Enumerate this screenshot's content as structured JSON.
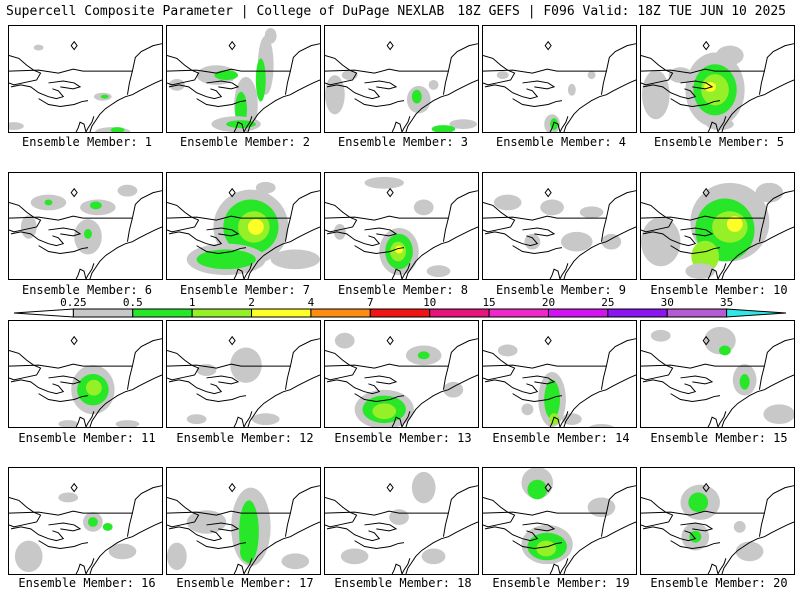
{
  "header": {
    "title_left": "Supercell Composite Parameter | College of DuPage NEXLAB",
    "title_right": "18Z GEFS | F096 Valid: 18Z TUE JUN 10 2025"
  },
  "colors": {
    "bins": [
      "#c8c8c8",
      "#28e628",
      "#96f028",
      "#ffff28",
      "#ff8c14",
      "#f01414",
      "#e6147d",
      "#f028c8",
      "#d214f0",
      "#8c14f0",
      "#b45ad2",
      "#32e6e6"
    ]
  },
  "legend": {
    "ticks": [
      "0.25",
      "0.5",
      "1",
      "2",
      "4",
      "7",
      "10",
      "15",
      "20",
      "25",
      "30",
      "35"
    ]
  },
  "members": [
    {
      "label": "Ensemble Member: 1",
      "icon": "map-panel",
      "blobs": [
        [
          30,
          22,
          5,
          3,
          0
        ],
        [
          95,
          72,
          9,
          4,
          0
        ],
        [
          97,
          72,
          4,
          2,
          1
        ],
        [
          105,
          108,
          18,
          5,
          0
        ],
        [
          110,
          106,
          7,
          3,
          1
        ],
        [
          5,
          102,
          10,
          4,
          0
        ]
      ]
    },
    {
      "label": "Ensemble Member: 2",
      "icon": "map-panel",
      "blobs": [
        [
          100,
          40,
          8,
          30,
          0
        ],
        [
          95,
          55,
          5,
          22,
          1
        ],
        [
          50,
          50,
          20,
          10,
          0
        ],
        [
          60,
          50,
          12,
          5,
          1
        ],
        [
          80,
          80,
          12,
          28,
          0
        ],
        [
          75,
          85,
          6,
          18,
          1
        ],
        [
          70,
          100,
          25,
          8,
          0
        ],
        [
          75,
          100,
          15,
          4,
          1
        ],
        [
          105,
          10,
          6,
          8,
          0
        ],
        [
          10,
          60,
          8,
          6,
          0
        ]
      ]
    },
    {
      "label": "Ensemble Member: 3",
      "icon": "map-panel",
      "blobs": [
        [
          95,
          75,
          12,
          14,
          0
        ],
        [
          93,
          72,
          5,
          7,
          1
        ],
        [
          10,
          70,
          10,
          20,
          0
        ],
        [
          25,
          50,
          8,
          5,
          0
        ],
        [
          110,
          60,
          5,
          5,
          0
        ],
        [
          140,
          100,
          14,
          5,
          0
        ],
        [
          120,
          105,
          12,
          4,
          1
        ]
      ]
    },
    {
      "label": "Ensemble Member: 4",
      "icon": "map-panel",
      "blobs": [
        [
          70,
          100,
          8,
          10,
          0
        ],
        [
          72,
          100,
          4,
          6,
          1
        ],
        [
          90,
          65,
          4,
          6,
          0
        ],
        [
          110,
          50,
          4,
          4,
          0
        ],
        [
          20,
          50,
          6,
          4,
          0
        ]
      ]
    },
    {
      "label": "Ensemble Member: 5",
      "icon": "map-panel",
      "blobs": [
        [
          75,
          65,
          30,
          38,
          0
        ],
        [
          75,
          65,
          22,
          26,
          1
        ],
        [
          75,
          65,
          14,
          16,
          2
        ],
        [
          70,
          62,
          6,
          5,
          3
        ],
        [
          15,
          70,
          14,
          25,
          0
        ],
        [
          40,
          50,
          12,
          8,
          0
        ],
        [
          90,
          30,
          14,
          10,
          0
        ],
        [
          80,
          100,
          14,
          6,
          0
        ]
      ]
    },
    {
      "label": "Ensemble Member: 6",
      "icon": "map-panel",
      "blobs": [
        [
          40,
          30,
          18,
          8,
          0
        ],
        [
          90,
          35,
          18,
          8,
          0
        ],
        [
          88,
          33,
          6,
          4,
          1
        ],
        [
          80,
          65,
          14,
          18,
          0
        ],
        [
          80,
          62,
          4,
          5,
          1
        ],
        [
          40,
          30,
          4,
          3,
          1
        ],
        [
          120,
          18,
          10,
          6,
          0
        ],
        [
          20,
          55,
          8,
          12,
          0
        ]
      ]
    },
    {
      "label": "Ensemble Member: 7",
      "icon": "map-panel",
      "blobs": [
        [
          85,
          55,
          38,
          38,
          0
        ],
        [
          85,
          55,
          28,
          28,
          1
        ],
        [
          88,
          55,
          16,
          16,
          2
        ],
        [
          90,
          55,
          8,
          8,
          3
        ],
        [
          60,
          88,
          40,
          16,
          0
        ],
        [
          60,
          88,
          30,
          10,
          1
        ],
        [
          130,
          88,
          25,
          10,
          0
        ],
        [
          100,
          15,
          10,
          6,
          0
        ]
      ]
    },
    {
      "label": "Ensemble Member: 8",
      "icon": "map-panel",
      "blobs": [
        [
          75,
          80,
          20,
          24,
          0
        ],
        [
          75,
          80,
          14,
          18,
          1
        ],
        [
          74,
          80,
          8,
          10,
          2
        ],
        [
          75,
          78,
          4,
          4,
          3
        ],
        [
          100,
          35,
          10,
          8,
          0
        ],
        [
          60,
          10,
          20,
          6,
          0
        ],
        [
          115,
          100,
          12,
          6,
          0
        ],
        [
          15,
          60,
          6,
          8,
          0
        ]
      ]
    },
    {
      "label": "Ensemble Member: 9",
      "icon": "map-panel",
      "blobs": [
        [
          25,
          30,
          14,
          8,
          0
        ],
        [
          70,
          35,
          12,
          8,
          0
        ],
        [
          95,
          70,
          16,
          10,
          0
        ],
        [
          110,
          40,
          12,
          6,
          0
        ],
        [
          130,
          70,
          10,
          8,
          0
        ],
        [
          50,
          70,
          8,
          8,
          0
        ]
      ]
    },
    {
      "label": "Ensemble Member: 10",
      "icon": "map-panel",
      "blobs": [
        [
          90,
          50,
          40,
          40,
          0
        ],
        [
          85,
          58,
          30,
          32,
          1
        ],
        [
          90,
          55,
          18,
          16,
          2
        ],
        [
          95,
          52,
          8,
          8,
          3
        ],
        [
          65,
          85,
          14,
          16,
          2
        ],
        [
          20,
          70,
          20,
          25,
          0
        ],
        [
          130,
          20,
          14,
          10,
          0
        ],
        [
          60,
          100,
          15,
          8,
          0
        ]
      ]
    },
    {
      "label": "Ensemble Member: 11",
      "icon": "map-panel",
      "blobs": [
        [
          85,
          70,
          22,
          25,
          0
        ],
        [
          85,
          70,
          16,
          16,
          1
        ],
        [
          86,
          68,
          8,
          8,
          2
        ],
        [
          120,
          105,
          12,
          4,
          0
        ],
        [
          60,
          105,
          10,
          4,
          0
        ]
      ]
    },
    {
      "label": "Ensemble Member: 12",
      "icon": "map-panel",
      "blobs": [
        [
          80,
          40,
          8,
          10,
          1
        ],
        [
          80,
          45,
          16,
          18,
          0
        ],
        [
          100,
          100,
          14,
          6,
          0
        ],
        [
          40,
          50,
          10,
          6,
          0
        ],
        [
          30,
          100,
          10,
          5,
          0
        ]
      ]
    },
    {
      "label": "Ensemble Member: 13",
      "icon": "map-panel",
      "blobs": [
        [
          60,
          90,
          30,
          20,
          0
        ],
        [
          60,
          90,
          22,
          14,
          1
        ],
        [
          60,
          92,
          12,
          8,
          2
        ],
        [
          100,
          35,
          18,
          10,
          0
        ],
        [
          100,
          35,
          6,
          4,
          1
        ],
        [
          20,
          20,
          10,
          8,
          0
        ],
        [
          130,
          70,
          10,
          8,
          0
        ]
      ]
    },
    {
      "label": "Ensemble Member: 14",
      "icon": "map-panel",
      "blobs": [
        [
          70,
          80,
          14,
          28,
          0
        ],
        [
          70,
          80,
          8,
          20,
          1
        ],
        [
          72,
          100,
          5,
          6,
          2
        ],
        [
          25,
          30,
          10,
          6,
          0
        ],
        [
          90,
          100,
          10,
          6,
          0
        ],
        [
          120,
          110,
          14,
          5,
          0
        ],
        [
          45,
          90,
          6,
          6,
          0
        ]
      ]
    },
    {
      "label": "Ensemble Member: 15",
      "icon": "map-panel",
      "blobs": [
        [
          105,
          60,
          12,
          16,
          0
        ],
        [
          105,
          62,
          5,
          8,
          1
        ],
        [
          80,
          20,
          16,
          14,
          0
        ],
        [
          85,
          30,
          6,
          5,
          1
        ],
        [
          140,
          95,
          16,
          10,
          0
        ],
        [
          20,
          15,
          10,
          6,
          0
        ]
      ]
    },
    {
      "label": "Ensemble Member: 16",
      "icon": "map-panel",
      "blobs": [
        [
          85,
          55,
          10,
          10,
          0
        ],
        [
          85,
          55,
          5,
          5,
          1
        ],
        [
          20,
          90,
          14,
          16,
          0
        ],
        [
          60,
          30,
          10,
          5,
          0
        ],
        [
          115,
          85,
          14,
          8,
          0
        ],
        [
          100,
          60,
          5,
          4,
          1
        ]
      ]
    },
    {
      "label": "Ensemble Member: 17",
      "icon": "map-panel",
      "blobs": [
        [
          85,
          60,
          20,
          40,
          0
        ],
        [
          83,
          65,
          10,
          32,
          1
        ],
        [
          80,
          85,
          6,
          10,
          1
        ],
        [
          40,
          55,
          20,
          12,
          0
        ],
        [
          10,
          90,
          10,
          14,
          0
        ],
        [
          130,
          95,
          14,
          8,
          0
        ]
      ]
    },
    {
      "label": "Ensemble Member: 18",
      "icon": "map-panel",
      "blobs": [
        [
          100,
          20,
          12,
          16,
          0
        ],
        [
          75,
          50,
          10,
          8,
          0
        ],
        [
          110,
          90,
          12,
          8,
          0
        ],
        [
          30,
          90,
          14,
          8,
          0
        ]
      ]
    },
    {
      "label": "Ensemble Member: 19",
      "icon": "map-panel",
      "blobs": [
        [
          55,
          15,
          16,
          16,
          0
        ],
        [
          55,
          22,
          10,
          10,
          1
        ],
        [
          65,
          78,
          26,
          20,
          0
        ],
        [
          65,
          80,
          20,
          14,
          1
        ],
        [
          64,
          82,
          10,
          8,
          2
        ],
        [
          120,
          40,
          14,
          10,
          0
        ]
      ]
    },
    {
      "label": "Ensemble Member: 20",
      "icon": "map-panel",
      "blobs": [
        [
          60,
          35,
          20,
          18,
          0
        ],
        [
          58,
          35,
          10,
          10,
          1
        ],
        [
          55,
          70,
          14,
          14,
          0
        ],
        [
          55,
          70,
          6,
          6,
          1
        ],
        [
          110,
          85,
          14,
          10,
          0
        ],
        [
          100,
          60,
          6,
          6,
          0
        ]
      ]
    }
  ]
}
